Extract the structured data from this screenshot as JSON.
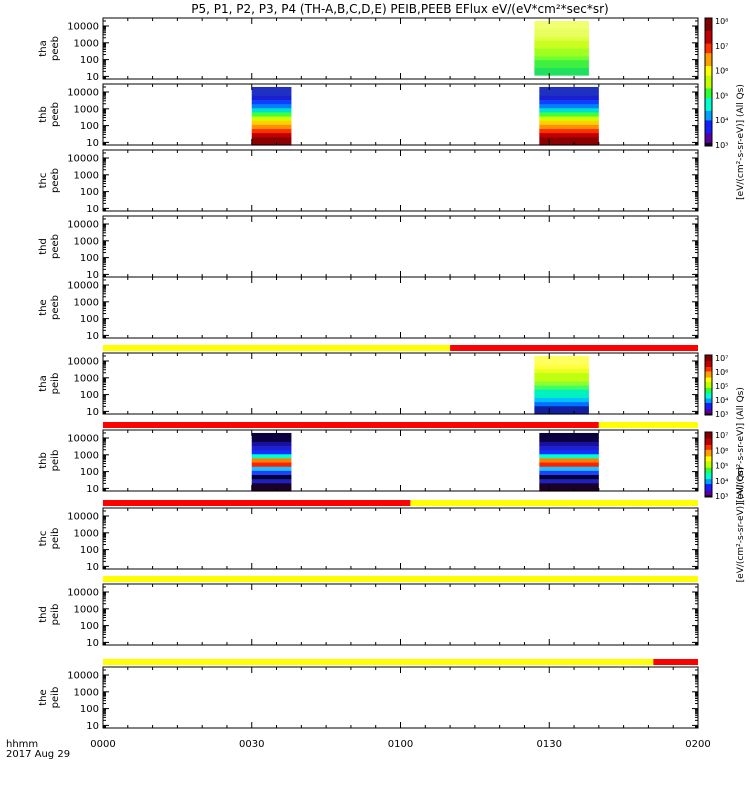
{
  "title": "P5, P1, P2, P3, P4 (TH-A,B,C,D,E) PEIB,PEEB EFlux eV/(eV*cm²*sec*sr)",
  "time_axis": {
    "label_top": "hhmm",
    "label_bottom": "2017 Aug 29",
    "ticks": [
      "0000",
      "0030",
      "0100",
      "0130",
      "0200"
    ],
    "range_minutes": [
      0,
      120
    ]
  },
  "y_ticks": [
    "10",
    "100",
    "1000",
    "10000"
  ],
  "colors": {
    "flag_yellow": "#ffff00",
    "flag_red": "#ff0000",
    "colormap": [
      "#1a0026",
      "#5a00a0",
      "#1020ff",
      "#00a0ff",
      "#00ffd0",
      "#30ff30",
      "#c0ff00",
      "#ffff00",
      "#ffa000",
      "#ff3000",
      "#c00000",
      "#800000"
    ]
  },
  "colorbars": [
    {
      "id": "electron",
      "labels": [
        "10⁸",
        "10⁷",
        "10⁶",
        "10⁵",
        "10⁴",
        "10³"
      ],
      "side_label": "[eV/(cm²-s-sr-eV)]   (All Qs)",
      "overlay_labels": [
        "10⁸",
        "10⁷",
        "10⁶",
        "10⁵",
        "10⁴",
        "10³"
      ]
    },
    {
      "id": "ion",
      "labels": [
        "10⁷",
        "10⁶",
        "10⁵",
        "10⁴",
        "10³"
      ],
      "side_label": "[eV/(cm²-s-sr-eV)]   (All Qs)",
      "overlay_labels": [
        "10⁷",
        "10⁶",
        "10⁵",
        "10⁴",
        "10³"
      ]
    }
  ],
  "chart_data": {
    "type": "heatmap",
    "title": "P5, P1, P2, P3, P4 (TH-A,B,C,D,E) PEIB,PEEB EFlux eV/(eV*cm²*sec*sr)",
    "xlabel": "hhmm",
    "x_range_minutes": [
      0,
      120
    ],
    "ylim_eV": [
      7,
      30000
    ],
    "yscale": "log",
    "panels": [
      {
        "label_line1": "tha",
        "label_line2": "peeb",
        "colorbar": "electron",
        "blocks": [
          {
            "start_min": 87,
            "end_min": 98,
            "emin": 12,
            "emax": 20000,
            "style": "tha_peeb"
          }
        ]
      },
      {
        "label_line1": "thb",
        "label_line2": "peeb",
        "colorbar": "electron",
        "blocks": [
          {
            "start_min": 30,
            "end_min": 38,
            "emin": 7,
            "emax": 20000,
            "style": "thb_peeb"
          },
          {
            "start_min": 88,
            "end_min": 100,
            "emin": 7,
            "emax": 20000,
            "style": "thb_peeb"
          }
        ]
      },
      {
        "label_line1": "thc",
        "label_line2": "peeb",
        "blocks": []
      },
      {
        "label_line1": "thd",
        "label_line2": "peeb",
        "blocks": []
      },
      {
        "label_line1": "the",
        "label_line2": "peeb",
        "blocks": []
      },
      {
        "label_line1": "tha",
        "label_line2": "peib",
        "colorbar": "ion",
        "flag": [
          {
            "start_min": 0,
            "end_min": 70,
            "color": "yellow"
          },
          {
            "start_min": 70,
            "end_min": 120,
            "color": "red"
          }
        ],
        "blocks": [
          {
            "start_min": 87,
            "end_min": 98,
            "emin": 7,
            "emax": 20000,
            "style": "tha_peib"
          }
        ]
      },
      {
        "label_line1": "thb",
        "label_line2": "peib",
        "colorbar": "ion",
        "flag": [
          {
            "start_min": 0,
            "end_min": 100,
            "color": "red"
          },
          {
            "start_min": 100,
            "end_min": 120,
            "color": "yellow"
          }
        ],
        "blocks": [
          {
            "start_min": 30,
            "end_min": 38,
            "emin": 7,
            "emax": 20000,
            "style": "thb_peib"
          },
          {
            "start_min": 88,
            "end_min": 100,
            "emin": 7,
            "emax": 20000,
            "style": "thb_peib"
          }
        ]
      },
      {
        "label_line1": "thc",
        "label_line2": "peib",
        "flag": [
          {
            "start_min": 0,
            "end_min": 62,
            "color": "red"
          },
          {
            "start_min": 62,
            "end_min": 120,
            "color": "yellow"
          }
        ],
        "blocks": []
      },
      {
        "label_line1": "thd",
        "label_line2": "peib",
        "flag": [
          {
            "start_min": 0,
            "end_min": 120,
            "color": "yellow"
          }
        ],
        "blocks": []
      },
      {
        "label_line1": "the",
        "label_line2": "peib",
        "flag": [
          {
            "start_min": 0,
            "end_min": 111,
            "color": "yellow"
          },
          {
            "start_min": 111,
            "end_min": 120,
            "color": "red"
          }
        ],
        "blocks": []
      }
    ]
  }
}
